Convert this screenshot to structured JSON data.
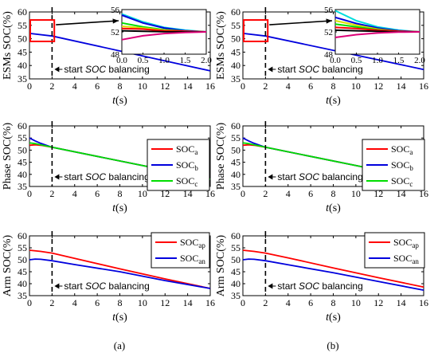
{
  "figure": {
    "caption_a": "(a)",
    "caption_b": "(b)",
    "colors": {
      "red": "#ff0000",
      "blue": "#0000dd",
      "green": "#00dd00",
      "magenta": "#dd0077",
      "cyan": "#00dddd",
      "yellow": "#dddd00",
      "black": "#000000"
    }
  },
  "chart_data": [
    {
      "id": "a-esm",
      "type": "line",
      "ylabel": "ESMs SOC(%)",
      "xlabel_italic": "t",
      "xlabel_rest": "(s)",
      "xlim": [
        0,
        16
      ],
      "ylim": [
        35,
        60
      ],
      "xticks": [
        0,
        2,
        4,
        6,
        8,
        10,
        12,
        14,
        16
      ],
      "yticks": [
        35,
        40,
        45,
        50,
        55,
        60
      ],
      "annotation": {
        "prefix": "start ",
        "italic": "SOC",
        "suffix": " balancing",
        "x": 2
      },
      "series": [
        {
          "color": "#0000dd",
          "x": [
            0,
            2,
            16
          ],
          "y": [
            52,
            51,
            38
          ]
        }
      ],
      "inset": {
        "xlim": [
          0,
          2
        ],
        "ylim": [
          48,
          56
        ],
        "xticks": [
          "0.0",
          "0.5",
          "1.0",
          "1.5",
          "2.0"
        ],
        "yticks": [
          48,
          52,
          56
        ],
        "series": [
          {
            "color": "#00dddd",
            "x": [
              0,
              0.5,
              1.0,
              1.5,
              2.0
            ],
            "y": [
              55.2,
              53.8,
              52.8,
              52.3,
              52.0
            ]
          },
          {
            "color": "#0000dd",
            "x": [
              0,
              0.5,
              1.0,
              1.5,
              2.0
            ],
            "y": [
              55.0,
              53.6,
              52.7,
              52.2,
              52.0
            ]
          },
          {
            "color": "#00dd00",
            "x": [
              0,
              0.5,
              1.0,
              1.5,
              2.0
            ],
            "y": [
              53.6,
              52.9,
              52.4,
              52.1,
              52.0
            ]
          },
          {
            "color": "#dddd00",
            "x": [
              0,
              0.5,
              1.0,
              1.5,
              2.0
            ],
            "y": [
              53.0,
              52.7,
              52.3,
              52.1,
              52.0
            ]
          },
          {
            "color": "#ff0000",
            "x": [
              0,
              0.5,
              1.0,
              1.5,
              2.0
            ],
            "y": [
              52.6,
              52.5,
              52.2,
              52.1,
              52.0
            ]
          },
          {
            "color": "#000000",
            "x": [
              0,
              0.5,
              1.0,
              1.5,
              2.0
            ],
            "y": [
              52.2,
              52.1,
              52.05,
              52.0,
              52.0
            ]
          },
          {
            "color": "#dd0077",
            "x": [
              0,
              0.5,
              1.0,
              1.5,
              2.0
            ],
            "y": [
              50.6,
              51.3,
              51.7,
              51.9,
              52.0
            ]
          }
        ]
      }
    },
    {
      "id": "a-phase",
      "type": "line",
      "ylabel": "Phase SOC(%)",
      "xlabel_italic": "t",
      "xlabel_rest": "(s)",
      "xlim": [
        0,
        16
      ],
      "ylim": [
        35,
        60
      ],
      "xticks": [
        0,
        2,
        4,
        6,
        8,
        10,
        12,
        14,
        16
      ],
      "yticks": [
        35,
        40,
        45,
        50,
        55,
        60
      ],
      "annotation": {
        "prefix": "start ",
        "italic": "SOC",
        "suffix": " balancing",
        "x": 2
      },
      "legend": [
        {
          "main": "SOC",
          "sub": "a",
          "color": "#ff0000"
        },
        {
          "main": "SOC",
          "sub": "b",
          "color": "#0000dd"
        },
        {
          "main": "SOC",
          "sub": "c",
          "color": "#00dd00"
        }
      ],
      "series": [
        {
          "color": "#ff0000",
          "x": [
            0,
            0.5,
            1,
            2,
            16
          ],
          "y": [
            52.0,
            52.2,
            52.0,
            51.2,
            38.0
          ]
        },
        {
          "color": "#0000dd",
          "x": [
            0,
            0.5,
            1,
            2,
            16
          ],
          "y": [
            55.0,
            53.8,
            52.8,
            51.2,
            38.0
          ]
        },
        {
          "color": "#00dd00",
          "x": [
            0,
            0.5,
            1,
            2,
            16
          ],
          "y": [
            53.0,
            52.7,
            52.2,
            51.2,
            38.0
          ]
        }
      ]
    },
    {
      "id": "a-arm",
      "type": "line",
      "ylabel": "Arm SOC(%)",
      "xlabel_italic": "t",
      "xlabel_rest": "(s)",
      "xlim": [
        0,
        16
      ],
      "ylim": [
        35,
        60
      ],
      "xticks": [
        0,
        2,
        4,
        6,
        8,
        10,
        12,
        14,
        16
      ],
      "yticks": [
        35,
        40,
        45,
        50,
        55,
        60
      ],
      "annotation": {
        "prefix": "start ",
        "italic": "SOC",
        "suffix": " balancing",
        "x": 2
      },
      "legend": [
        {
          "main": "SOC",
          "sub": "ap",
          "color": "#ff0000"
        },
        {
          "main": "SOC",
          "sub": "an",
          "color": "#0000dd"
        }
      ],
      "series": [
        {
          "color": "#ff0000",
          "x": [
            0,
            1,
            2,
            4,
            8,
            12,
            16
          ],
          "y": [
            54.0,
            53.5,
            52.8,
            50.6,
            46.2,
            42.0,
            38.0
          ]
        },
        {
          "color": "#0000dd",
          "x": [
            0,
            0.5,
            1,
            2,
            4,
            8,
            12,
            16
          ],
          "y": [
            50.0,
            50.3,
            50.2,
            49.6,
            48.0,
            45.0,
            41.3,
            38.0
          ]
        }
      ]
    },
    {
      "id": "b-esm",
      "type": "line",
      "ylabel": "ESMs SOC(%)",
      "xlabel_italic": "t",
      "xlabel_rest": "(s)",
      "xlim": [
        0,
        16
      ],
      "ylim": [
        35,
        60
      ],
      "xticks": [
        0,
        2,
        4,
        6,
        8,
        10,
        12,
        14,
        16
      ],
      "yticks": [
        35,
        40,
        45,
        50,
        55,
        60
      ],
      "annotation": {
        "prefix": "start ",
        "italic": "SOC",
        "suffix": " balancing",
        "x": 2
      },
      "series": [
        {
          "color": "#0000dd",
          "x": [
            0,
            2,
            16
          ],
          "y": [
            52,
            51,
            38.5
          ]
        }
      ],
      "inset": {
        "xlim": [
          0,
          2
        ],
        "ylim": [
          48,
          56
        ],
        "xticks": [
          "0.0",
          "0.5",
          "1.0",
          "1.5",
          "2.0"
        ],
        "yticks": [
          48,
          52,
          56
        ],
        "series": [
          {
            "color": "#00dddd",
            "x": [
              0,
              0.5,
              1.0,
              1.5,
              2.0
            ],
            "y": [
              55.8,
              54.0,
              52.9,
              52.3,
              52.0
            ]
          },
          {
            "color": "#0000dd",
            "x": [
              0,
              0.5,
              1.0,
              1.5,
              2.0
            ],
            "y": [
              54.6,
              53.5,
              52.7,
              52.2,
              52.0
            ]
          },
          {
            "color": "#dddd00",
            "x": [
              0,
              0.5,
              1.0,
              1.5,
              2.0
            ],
            "y": [
              54.0,
              53.2,
              52.5,
              52.1,
              52.0
            ]
          },
          {
            "color": "#00dd00",
            "x": [
              0,
              0.5,
              1.0,
              1.5,
              2.0
            ],
            "y": [
              53.4,
              52.9,
              52.4,
              52.1,
              52.0
            ]
          },
          {
            "color": "#ff0000",
            "x": [
              0,
              0.5,
              1.0,
              1.5,
              2.0
            ],
            "y": [
              52.8,
              52.6,
              52.3,
              52.1,
              52.0
            ]
          },
          {
            "color": "#000000",
            "x": [
              0,
              0.5,
              1.0,
              1.5,
              2.0
            ],
            "y": [
              52.3,
              52.2,
              52.1,
              52.0,
              52.0
            ]
          },
          {
            "color": "#dd0077",
            "x": [
              0,
              0.5,
              1.0,
              1.5,
              2.0
            ],
            "y": [
              51.0,
              51.5,
              51.8,
              51.95,
              52.0
            ]
          }
        ]
      }
    },
    {
      "id": "b-phase",
      "type": "line",
      "ylabel": "Phase SOC(%)",
      "xlabel_italic": "t",
      "xlabel_rest": "(s)",
      "xlim": [
        0,
        16
      ],
      "ylim": [
        35,
        60
      ],
      "xticks": [
        0,
        2,
        4,
        6,
        8,
        10,
        12,
        14,
        16
      ],
      "yticks": [
        35,
        40,
        45,
        50,
        55,
        60
      ],
      "annotation": {
        "prefix": "start ",
        "italic": "SOC",
        "suffix": " balancing",
        "x": 2
      },
      "legend": [
        {
          "main": "SOC",
          "sub": "a",
          "color": "#ff0000"
        },
        {
          "main": "SOC",
          "sub": "b",
          "color": "#0000dd"
        },
        {
          "main": "SOC",
          "sub": "c",
          "color": "#00dd00"
        }
      ],
      "series": [
        {
          "color": "#ff0000",
          "x": [
            0,
            0.5,
            1,
            2,
            16
          ],
          "y": [
            52.0,
            52.2,
            52.0,
            51.2,
            38.0
          ]
        },
        {
          "color": "#0000dd",
          "x": [
            0,
            0.5,
            1,
            2,
            16
          ],
          "y": [
            55.0,
            53.8,
            52.8,
            51.2,
            38.0
          ]
        },
        {
          "color": "#00dd00",
          "x": [
            0,
            0.5,
            1,
            2,
            16
          ],
          "y": [
            53.0,
            52.7,
            52.2,
            51.2,
            38.0
          ]
        }
      ]
    },
    {
      "id": "b-arm",
      "type": "line",
      "ylabel": "Arm SOC(%)",
      "xlabel_italic": "t",
      "xlabel_rest": "(s)",
      "xlim": [
        0,
        16
      ],
      "ylim": [
        35,
        60
      ],
      "xticks": [
        0,
        2,
        4,
        6,
        8,
        10,
        12,
        14,
        16
      ],
      "yticks": [
        35,
        40,
        45,
        50,
        55,
        60
      ],
      "annotation": {
        "prefix": "start ",
        "italic": "SOC",
        "suffix": " balancing",
        "x": 2
      },
      "legend": [
        {
          "main": "SOC",
          "sub": "ap",
          "color": "#ff0000"
        },
        {
          "main": "SOC",
          "sub": "an",
          "color": "#0000dd"
        }
      ],
      "series": [
        {
          "color": "#ff0000",
          "x": [
            0,
            1,
            2,
            4,
            8,
            12,
            16
          ],
          "y": [
            54.0,
            53.5,
            52.8,
            50.8,
            46.6,
            42.5,
            38.6
          ]
        },
        {
          "color": "#0000dd",
          "x": [
            0,
            0.5,
            1,
            2,
            4,
            8,
            12,
            16
          ],
          "y": [
            50.0,
            50.3,
            50.2,
            49.6,
            47.9,
            44.6,
            40.9,
            37.3
          ]
        }
      ]
    }
  ]
}
